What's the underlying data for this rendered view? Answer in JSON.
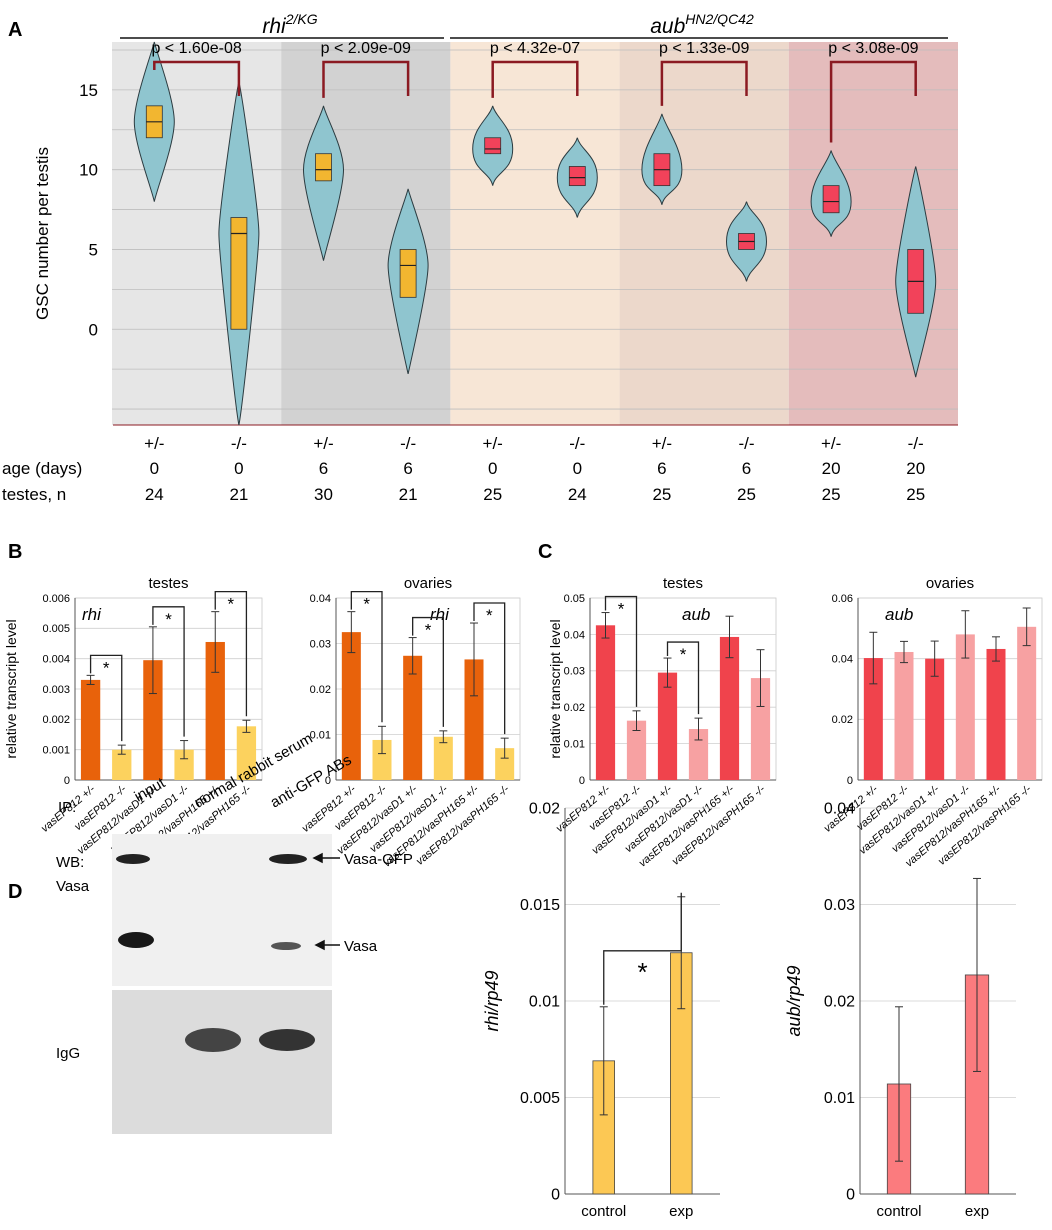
{
  "colors": {
    "violin_fill": "#8fc5cf",
    "violin_stroke": "#2b3b40",
    "box_rhi": "#f2b630",
    "box_aub": "#f2425a",
    "bracket": "#8b1a22",
    "bg_rhi0": "#e6e6e6",
    "bg_rhi6": "#d2d2d2",
    "bg_aub0": "#f7e6d6",
    "bg_aub6": "#ecd8cb",
    "bg_aub20": "#e4bcbc",
    "bar_dark_orange": "#e8620b",
    "bar_light_orange": "#fcd25e",
    "bar_dark_red": "#f0434c",
    "bar_light_red": "#f7a1a2",
    "bar_d_rhi": "#fcc854",
    "bar_d_aub": "#fb7b7e"
  },
  "panel_labels": {
    "A": "A",
    "B": "B",
    "C": "C",
    "D": "D"
  },
  "chart_data": [
    {
      "id": "A",
      "type": "violin",
      "ylabel": "GSC number per testis",
      "yticks": [
        0,
        5,
        10,
        15
      ],
      "ylim": [
        -6,
        18
      ],
      "group_titles": [
        {
          "name": "rhi",
          "sup": "2/KG"
        },
        {
          "name": "aub",
          "sup": "HN2/QC42"
        }
      ],
      "row_labels": {
        "genotype": "",
        "age": "age (days)",
        "n": "testes, n"
      },
      "groups": [
        {
          "genotype": "+/-",
          "age": "0",
          "n": "24",
          "gene": "rhi",
          "median": 13,
          "q1": 12,
          "q3": 14,
          "min": 8,
          "max": 18
        },
        {
          "genotype": "-/-",
          "age": "0",
          "n": "21",
          "gene": "rhi",
          "median": 6,
          "q1": 0,
          "q3": 7,
          "min": -6,
          "max": 15.5
        },
        {
          "genotype": "+/-",
          "age": "6",
          "n": "30",
          "gene": "rhi",
          "median": 10,
          "q1": 9.3,
          "q3": 11,
          "min": 4.3,
          "max": 14
        },
        {
          "genotype": "-/-",
          "age": "6",
          "n": "21",
          "gene": "rhi",
          "median": 4,
          "q1": 2,
          "q3": 5,
          "min": -2.8,
          "max": 8.8
        },
        {
          "genotype": "+/-",
          "age": "0",
          "n": "25",
          "gene": "aub",
          "median": 11.3,
          "q1": 11,
          "q3": 12,
          "min": 9,
          "max": 14
        },
        {
          "genotype": "-/-",
          "age": "0",
          "n": "24",
          "gene": "aub",
          "median": 9.5,
          "q1": 9,
          "q3": 10.2,
          "min": 7,
          "max": 12
        },
        {
          "genotype": "+/-",
          "age": "6",
          "n": "25",
          "gene": "aub",
          "median": 10,
          "q1": 9,
          "q3": 11,
          "min": 7.8,
          "max": 13.5
        },
        {
          "genotype": "-/-",
          "age": "6",
          "n": "25",
          "gene": "aub",
          "median": 5.5,
          "q1": 5,
          "q3": 6,
          "min": 3,
          "max": 8
        },
        {
          "genotype": "+/-",
          "age": "20",
          "n": "25",
          "gene": "aub",
          "median": 8,
          "q1": 7.3,
          "q3": 9,
          "min": 5.8,
          "max": 11.2
        },
        {
          "genotype": "-/-",
          "age": "20",
          "n": "25",
          "gene": "aub",
          "median": 3,
          "q1": 1,
          "q3": 5,
          "min": -3,
          "max": 10.2
        }
      ],
      "comparisons": [
        {
          "from": 0,
          "to": 1,
          "label": "p < 1.60e-08"
        },
        {
          "from": 2,
          "to": 3,
          "label": "p < 2.09e-09"
        },
        {
          "from": 4,
          "to": 5,
          "label": "p < 4.32e-07"
        },
        {
          "from": 6,
          "to": 7,
          "label": "p < 1.33e-09"
        },
        {
          "from": 8,
          "to": 9,
          "label": "p < 3.08e-09"
        }
      ]
    },
    {
      "id": "B1",
      "type": "bar",
      "title": "testes",
      "ylabel": "relative transcript level",
      "gene": "rhi",
      "ylim": [
        0,
        0.006
      ],
      "yticks": [
        "0",
        "0.001",
        "0.002",
        "0.003",
        "0.004",
        "0.005",
        "0.006"
      ],
      "categories": [
        "vasEP812 +/-",
        "vasEP812 -/-",
        "vasEP812/vasD1 +/-",
        "vasEP812/vasD1 -/-",
        "vasEP812/vasPH165 +/-",
        "vasEP812/vasPH165 -/-"
      ],
      "values": [
        0.0033,
        0.001,
        0.00395,
        0.001,
        0.00455,
        0.00177
      ],
      "errors": [
        0.00015,
        0.00015,
        0.0011,
        0.0003,
        0.001,
        0.0002
      ],
      "significance": [
        {
          "from": 0,
          "to": 1,
          "label": "*"
        },
        {
          "from": 2,
          "to": 3,
          "label": "*"
        },
        {
          "from": 4,
          "to": 5,
          "label": "*"
        }
      ]
    },
    {
      "id": "B2",
      "type": "bar",
      "title": "ovaries",
      "ylabel": "",
      "gene": "rhi",
      "ylim": [
        0,
        0.04
      ],
      "yticks": [
        "0",
        "0.01",
        "0.02",
        "0.03",
        "0.04"
      ],
      "categories": [
        "vasEP812 +/-",
        "vasEP812 -/-",
        "vasEP812/vasD1 +/-",
        "vasEP812/vasD1 -/-",
        "vasEP812/vasPH165 +/-",
        "vasEP812/vasPH165 -/-"
      ],
      "values": [
        0.0325,
        0.0088,
        0.0273,
        0.0095,
        0.0265,
        0.007
      ],
      "errors": [
        0.0045,
        0.003,
        0.004,
        0.0013,
        0.008,
        0.0022
      ],
      "significance": [
        {
          "from": 0,
          "to": 1,
          "label": "*"
        },
        {
          "from": 2,
          "to": 3,
          "label": "*"
        },
        {
          "from": 4,
          "to": 5,
          "label": "*"
        }
      ]
    },
    {
      "id": "C1",
      "type": "bar",
      "title": "testes",
      "ylabel": "relative transcript level",
      "gene": "aub",
      "ylim": [
        0,
        0.05
      ],
      "yticks": [
        "0",
        "0.01",
        "0.02",
        "0.03",
        "0.04",
        "0.05"
      ],
      "categories": [
        "vasEP812 +/-",
        "vasEP812 -/-",
        "vasEP812/vasD1 +/-",
        "vasEP812/vasD1 -/-",
        "vasEP812/vasPH165 +/-",
        "vasEP812/vasPH165 -/-"
      ],
      "values": [
        0.0425,
        0.0163,
        0.0295,
        0.014,
        0.0393,
        0.028
      ],
      "errors": [
        0.0035,
        0.0027,
        0.004,
        0.003,
        0.0057,
        0.0078
      ],
      "significance": [
        {
          "from": 0,
          "to": 1,
          "label": "*"
        },
        {
          "from": 2,
          "to": 3,
          "label": "*"
        }
      ]
    },
    {
      "id": "C2",
      "type": "bar",
      "title": "ovaries",
      "ylabel": "",
      "gene": "aub",
      "ylim": [
        0,
        0.06
      ],
      "yticks": [
        "0",
        "0.02",
        "0.04",
        "0.06"
      ],
      "categories": [
        "vasEP812 +/-",
        "vasEP812 -/-",
        "vasEP812/vasD1 +/-",
        "vasEP812/vasD1 -/-",
        "vasEP812/vasPH165 +/-",
        "vasEP812/vasPH165 -/-"
      ],
      "values": [
        0.0402,
        0.0422,
        0.04,
        0.048,
        0.0432,
        0.0505
      ],
      "errors": [
        0.0085,
        0.0035,
        0.0058,
        0.0078,
        0.004,
        0.0062
      ],
      "significance": []
    },
    {
      "id": "D1",
      "type": "bar",
      "title": "",
      "ylabel": "rhi/rp49",
      "ylim": [
        0,
        0.02
      ],
      "yticks": [
        "0",
        "0.005",
        "0.01",
        "0.015",
        "0.02"
      ],
      "categories": [
        "control",
        "exp"
      ],
      "values": [
        0.0069,
        0.0125
      ],
      "errors": [
        0.0028,
        0.0029
      ],
      "significance": [
        {
          "from": 0,
          "to": 1,
          "label": "*"
        }
      ]
    },
    {
      "id": "D2",
      "type": "bar",
      "title": "",
      "ylabel": "aub/rp49",
      "ylim": [
        0,
        0.04
      ],
      "yticks": [
        "0",
        "0.01",
        "0.02",
        "0.03",
        "0.04"
      ],
      "categories": [
        "control",
        "exp"
      ],
      "values": [
        0.0114,
        0.0227
      ],
      "errors": [
        0.008,
        0.01
      ],
      "significance": []
    }
  ],
  "blot": {
    "ip_label": "IP:",
    "lanes": [
      "input",
      "normal rabbit serum",
      "anti-GFP ABs"
    ],
    "wb_label": "WB:",
    "wb_target": "Vasa",
    "igg_label": "IgG",
    "band_labels": [
      "Vasa-GFP",
      "Vasa"
    ]
  }
}
